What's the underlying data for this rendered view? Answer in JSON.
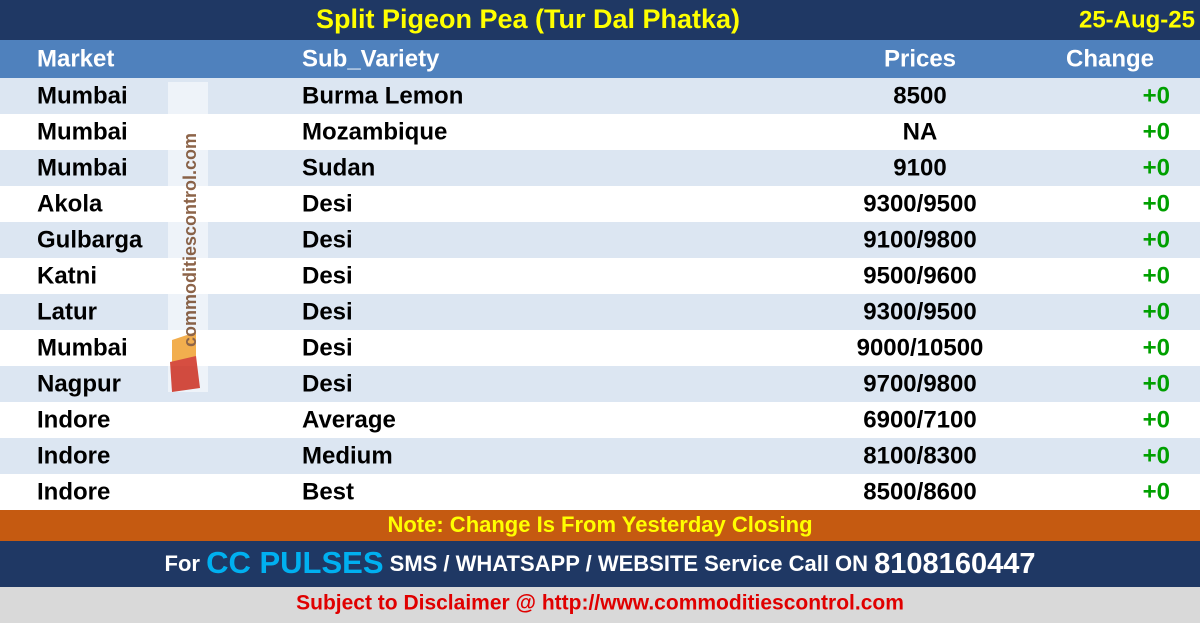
{
  "header": {
    "title": "Split Pigeon Pea (Tur Dal Phatka)",
    "date": "25-Aug-25"
  },
  "table": {
    "columns": [
      "Market",
      "Sub_Variety",
      "Prices",
      "Change"
    ],
    "rows": [
      [
        "Mumbai",
        "Burma Lemon",
        "8500",
        "+0"
      ],
      [
        "Mumbai",
        "Mozambique",
        "NA",
        "+0"
      ],
      [
        "Mumbai",
        "Sudan",
        "9100",
        "+0"
      ],
      [
        "Akola",
        "Desi",
        "9300/9500",
        "+0"
      ],
      [
        "Gulbarga",
        "Desi",
        "9100/9800",
        "+0"
      ],
      [
        "Katni",
        "Desi",
        "9500/9600",
        "+0"
      ],
      [
        "Latur",
        "Desi",
        "9300/9500",
        "+0"
      ],
      [
        "Mumbai",
        "Desi",
        "9000/10500",
        "+0"
      ],
      [
        "Nagpur",
        "Desi",
        "9700/9800",
        "+0"
      ],
      [
        "Indore",
        "Average",
        "6900/7100",
        "+0"
      ],
      [
        "Indore",
        "Medium",
        "8100/8300",
        "+0"
      ],
      [
        "Indore",
        "Best",
        "8500/8600",
        "+0"
      ]
    ]
  },
  "watermark": "commoditiescontrol.com",
  "note": "Note: Change Is From Yesterday Closing",
  "footer": {
    "lead": "For",
    "brand": "CC PULSES",
    "service": "SMS / WHATSAPP / WEBSITE Service Call  ON",
    "phone": "8108160447"
  },
  "disclaimer": "Subject to Disclaimer @  http://www.commoditiescontrol.com"
}
